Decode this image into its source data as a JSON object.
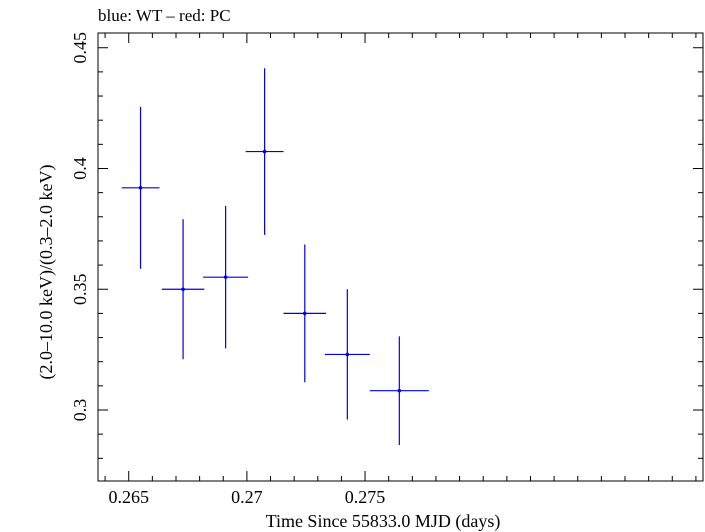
{
  "chart_data": {
    "type": "scatter",
    "title": "blue: WT – red: PC",
    "xlabel": "Time Since 55833.0 MJD (days)",
    "ylabel": "(2.0–10.0 keV)/(0.3–2.0 keV)",
    "xlim": [
      0.2637,
      0.2893
    ],
    "ylim": [
      0.2706,
      0.4561
    ],
    "x_major_ticks": [
      0.265,
      0.27,
      0.275
    ],
    "x_tick_labels": [
      "0.265",
      "0.27",
      "0.275"
    ],
    "x_minor_step": 0.001,
    "y_major_ticks": [
      0.3,
      0.35,
      0.4,
      0.45
    ],
    "y_tick_labels": [
      "0.3",
      "0.35",
      "0.4",
      "0.45"
    ],
    "y_minor_step": 0.01,
    "grid": false,
    "colors": {
      "WT": "#0000ee",
      "PC": "#ee0000",
      "axes": "#000000"
    },
    "series": [
      {
        "name": "WT",
        "color": "#0000ee",
        "points": [
          {
            "x": 0.2655,
            "y": 0.392,
            "xerr": 0.0008,
            "yerr_low": 0.0335,
            "yerr_high": 0.0335
          },
          {
            "x": 0.2673,
            "y": 0.35,
            "xerr": 0.0009,
            "yerr_low": 0.029,
            "yerr_high": 0.029
          },
          {
            "x": 0.2691,
            "y": 0.355,
            "xerr": 0.00095,
            "yerr_low": 0.0295,
            "yerr_high": 0.0295
          },
          {
            "x": 0.27075,
            "y": 0.407,
            "xerr": 0.0008,
            "yerr_low": 0.0345,
            "yerr_high": 0.0345
          },
          {
            "x": 0.27245,
            "y": 0.34,
            "xerr": 0.0009,
            "yerr_low": 0.0285,
            "yerr_high": 0.0285
          },
          {
            "x": 0.27425,
            "y": 0.323,
            "xerr": 0.00095,
            "yerr_low": 0.027,
            "yerr_high": 0.027
          },
          {
            "x": 0.27645,
            "y": 0.308,
            "xerr": 0.00125,
            "yerr_low": 0.0225,
            "yerr_high": 0.0225
          }
        ]
      }
    ]
  }
}
